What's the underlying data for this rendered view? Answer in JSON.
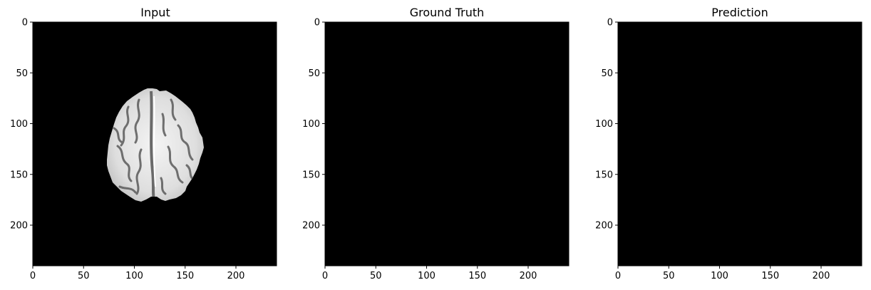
{
  "chart_data": [
    {
      "type": "heatmap",
      "title": "Input",
      "xlabel": "",
      "ylabel": "",
      "xlim": [
        0,
        240
      ],
      "ylim": [
        240,
        0
      ],
      "x_ticks": [
        0,
        50,
        100,
        150,
        200
      ],
      "y_ticks": [
        0,
        50,
        100,
        150,
        200
      ],
      "background_color": "#000000",
      "content": "brain-axial-slice",
      "colormap": "gray",
      "grid": false
    },
    {
      "type": "heatmap",
      "title": "Ground Truth",
      "xlabel": "",
      "ylabel": "",
      "xlim": [
        0,
        240
      ],
      "ylim": [
        240,
        0
      ],
      "x_ticks": [
        0,
        50,
        100,
        150,
        200
      ],
      "y_ticks": [
        0,
        50,
        100,
        150,
        200
      ],
      "background_color": "#000000",
      "content": "empty",
      "colormap": "gray",
      "grid": false
    },
    {
      "type": "heatmap",
      "title": "Prediction",
      "xlabel": "",
      "ylabel": "",
      "xlim": [
        0,
        240
      ],
      "ylim": [
        240,
        0
      ],
      "x_ticks": [
        0,
        50,
        100,
        150,
        200
      ],
      "y_ticks": [
        0,
        50,
        100,
        150,
        200
      ],
      "background_color": "#000000",
      "content": "empty",
      "colormap": "gray",
      "grid": false
    }
  ]
}
